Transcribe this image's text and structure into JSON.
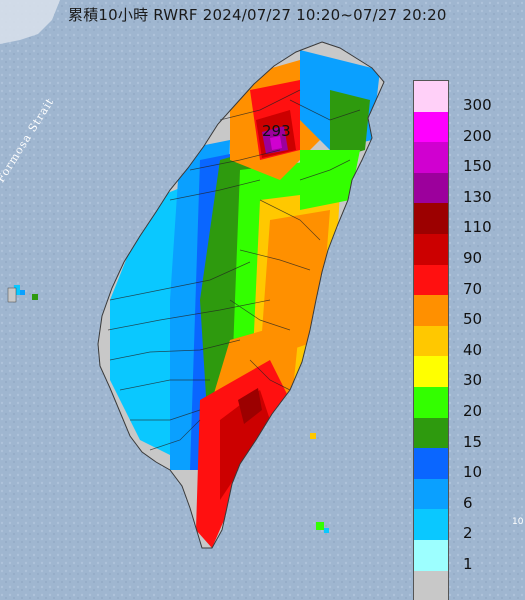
{
  "title": "累積10小時 RWRF 2024/07/27 10:20~07/27 20:20",
  "strait_label": "Formosa Strait",
  "max_value_label": "293",
  "edge_number": "10",
  "colors": {
    "sea": "#9fb6d0",
    "land_dry": "#c8c8c8",
    "rivers": "#222222"
  },
  "legend": {
    "levels": [
      {
        "label": "300",
        "color": "#ffd0f8"
      },
      {
        "label": "200",
        "color": "#ff00ff"
      },
      {
        "label": "150",
        "color": "#d000d0"
      },
      {
        "label": "130",
        "color": "#9c009c"
      },
      {
        "label": "110",
        "color": "#9c0000"
      },
      {
        "label": "90",
        "color": "#cc0000"
      },
      {
        "label": "70",
        "color": "#ff1010"
      },
      {
        "label": "50",
        "color": "#ff9000"
      },
      {
        "label": "40",
        "color": "#ffc800"
      },
      {
        "label": "30",
        "color": "#ffff00"
      },
      {
        "label": "20",
        "color": "#33ff00"
      },
      {
        "label": "15",
        "color": "#2e9a0e"
      },
      {
        "label": "10",
        "color": "#0a66ff"
      },
      {
        "label": "6",
        "color": "#0aa0ff"
      },
      {
        "label": "2",
        "color": "#0ac8ff"
      },
      {
        "label": "1",
        "color": "#9dffff"
      },
      {
        "label": "",
        "color": "#c8c8c8"
      }
    ]
  }
}
